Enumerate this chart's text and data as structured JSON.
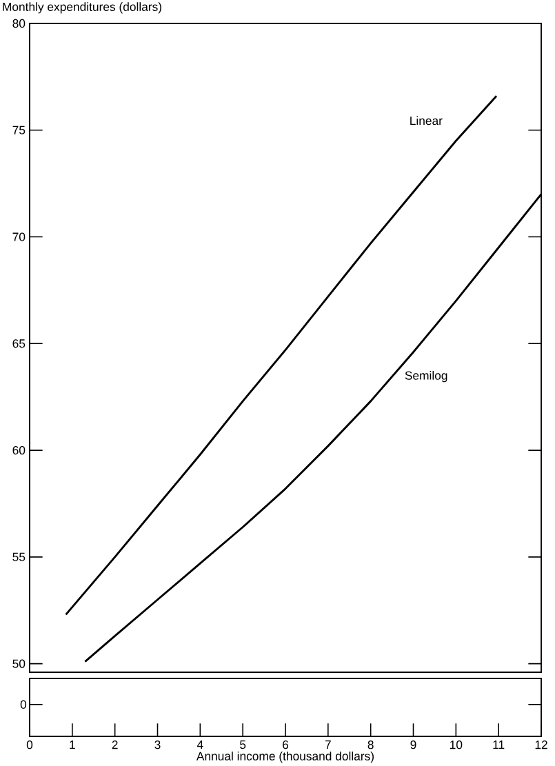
{
  "chart_data": {
    "type": "line",
    "ylabel": "Monthly expenditures (dollars)",
    "xlabel": "Annual income (thousand dollars)",
    "xlim": [
      0,
      12
    ],
    "xticks": [
      0,
      1,
      2,
      3,
      4,
      5,
      6,
      7,
      8,
      9,
      10,
      11,
      12
    ],
    "ylim": [
      49.6,
      80
    ],
    "yticks": [
      50,
      55,
      60,
      65,
      70,
      75,
      80
    ],
    "annotations": [
      "0"
    ],
    "grid": false,
    "legend": false,
    "marker": "none",
    "line_style": "solid",
    "series": [
      {
        "name": "Linear",
        "color": "#000000",
        "x": [
          0.85,
          2,
          3,
          4,
          5,
          6,
          7,
          8,
          9,
          10,
          10.95
        ],
        "values": [
          52.3,
          55.0,
          57.4,
          59.8,
          62.3,
          64.7,
          67.2,
          69.7,
          72.1,
          74.5,
          76.6
        ]
      },
      {
        "name": "Semilog",
        "color": "#000000",
        "x": [
          1.3,
          2,
          3,
          4,
          5,
          6,
          7,
          8,
          9,
          10,
          11,
          12
        ],
        "values": [
          50.1,
          51.3,
          53.0,
          54.7,
          56.4,
          58.2,
          60.2,
          62.3,
          64.6,
          67.0,
          69.5,
          72.0
        ]
      }
    ]
  }
}
